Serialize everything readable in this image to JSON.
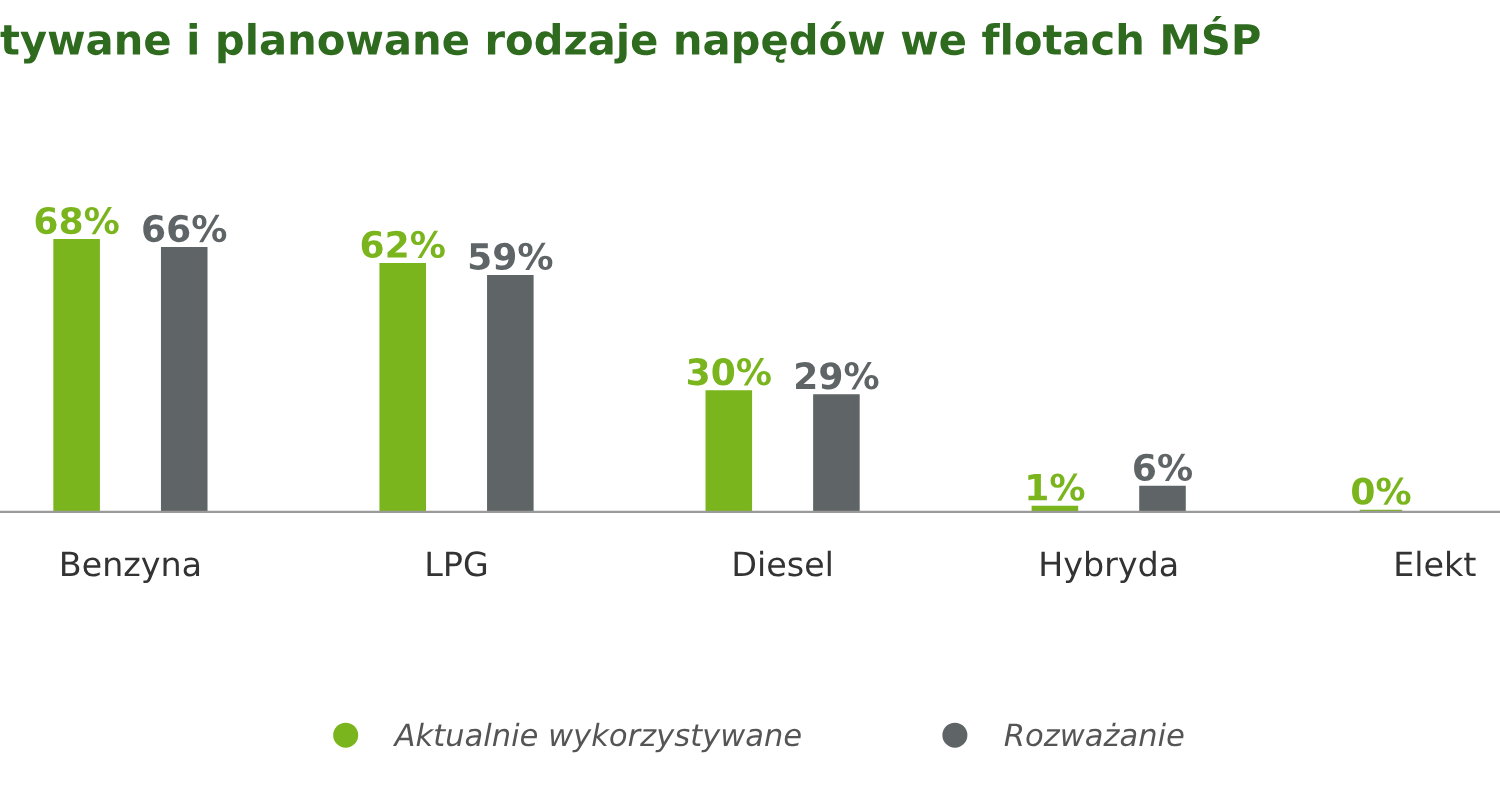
{
  "chart_data": {
    "type": "bar",
    "title": "tywane i planowane rodzaje napędów we flotach MŚP",
    "categories": [
      "Benzyna",
      "LPG",
      "Diesel",
      "Hybryda",
      "Elekt"
    ],
    "series": [
      {
        "name": "Aktualnie wykorzystywane",
        "color": "#7ab51d",
        "values": [
          68,
          62,
          30,
          1,
          0
        ],
        "value_labels": [
          "68%",
          "62%",
          "30%",
          "1%",
          "0%"
        ]
      },
      {
        "name": "Rozważanie",
        "color": "#5f6466",
        "values": [
          66,
          59,
          29,
          6,
          null
        ],
        "value_labels": [
          "66%",
          "59%",
          "29%",
          "6%",
          null
        ]
      }
    ],
    "legend": "bottom",
    "grid": false
  }
}
